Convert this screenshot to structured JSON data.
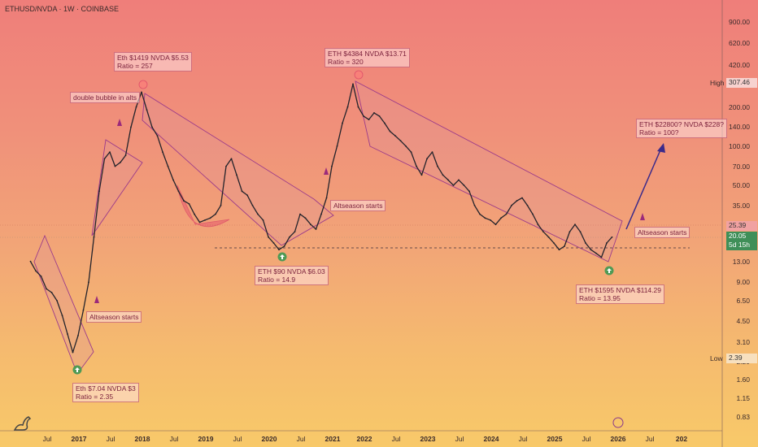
{
  "title": "ETHUSD/NVDA · 1W · COINBASE",
  "chart_data": {
    "type": "line",
    "symbol": "ETHUSD/NVDA",
    "interval": "1W",
    "exchange": "COINBASE",
    "y_scale": "log",
    "ylim": [
      0.7,
      1100
    ],
    "y_ticks": [
      "900.00",
      "620.00",
      "420.00",
      "200.00",
      "140.00",
      "100.00",
      "70.00",
      "50.00",
      "35.00",
      "13.00",
      "9.00",
      "6.50",
      "4.50",
      "3.10",
      "2.20",
      "1.60",
      "1.15",
      "0.83"
    ],
    "x_ticks": [
      {
        "label": "Jul",
        "bold": false
      },
      {
        "label": "2017",
        "bold": true
      },
      {
        "label": "Jul",
        "bold": false
      },
      {
        "label": "2018",
        "bold": true
      },
      {
        "label": "Jul",
        "bold": false
      },
      {
        "label": "2019",
        "bold": true
      },
      {
        "label": "Jul",
        "bold": false
      },
      {
        "label": "2020",
        "bold": true
      },
      {
        "label": "Jul",
        "bold": false
      },
      {
        "label": "2021",
        "bold": true
      },
      {
        "label": "2022",
        "bold": true
      },
      {
        "label": "Jul",
        "bold": false
      },
      {
        "label": "2023",
        "bold": true
      },
      {
        "label": "Jul",
        "bold": false
      },
      {
        "label": "2024",
        "bold": true
      },
      {
        "label": "Jul",
        "bold": false
      },
      {
        "label": "2025",
        "bold": true
      },
      {
        "label": "Jul",
        "bold": false
      },
      {
        "label": "2026",
        "bold": true
      },
      {
        "label": "Jul",
        "bold": false
      },
      {
        "label": "202",
        "bold": true
      }
    ],
    "price_labels": {
      "high_label": "High",
      "high_value": "307.46",
      "level_value": "25.39",
      "current_value": "20.05",
      "countdown": "5d 15h",
      "low_label": "Low",
      "low_value": "2.39"
    },
    "series": [
      {
        "values": [
          [
            "2016-04",
            13
          ],
          [
            "2016-05",
            11
          ],
          [
            "2016-06",
            10
          ],
          [
            "2016-07",
            8
          ],
          [
            "2016-08",
            7.5
          ],
          [
            "2016-09",
            6.5
          ],
          [
            "2016-10",
            5
          ],
          [
            "2016-11",
            3.6
          ],
          [
            "2016-12",
            2.6
          ],
          [
            "2017-01",
            3.5
          ],
          [
            "2017-02",
            5.5
          ],
          [
            "2017-03",
            9
          ],
          [
            "2017-04",
            20
          ],
          [
            "2017-05",
            45
          ],
          [
            "2017-06",
            80
          ],
          [
            "2017-07",
            90
          ],
          [
            "2017-08",
            70
          ],
          [
            "2017-09",
            75
          ],
          [
            "2017-10",
            85
          ],
          [
            "2017-11",
            140
          ],
          [
            "2017-12",
            200
          ],
          [
            "2018-01",
            260
          ],
          [
            "2018-02",
            190
          ],
          [
            "2018-03",
            140
          ],
          [
            "2018-04",
            120
          ],
          [
            "2018-05",
            90
          ],
          [
            "2018-06",
            70
          ],
          [
            "2018-07",
            55
          ],
          [
            "2018-08",
            45
          ],
          [
            "2018-09",
            38
          ],
          [
            "2018-10",
            36
          ],
          [
            "2018-11",
            30
          ],
          [
            "2018-12",
            26
          ],
          [
            "2019-01",
            27
          ],
          [
            "2019-02",
            28
          ],
          [
            "2019-03",
            30
          ],
          [
            "2019-04",
            35
          ],
          [
            "2019-05",
            70
          ],
          [
            "2019-06",
            80
          ],
          [
            "2019-07",
            60
          ],
          [
            "2019-08",
            45
          ],
          [
            "2019-09",
            42
          ],
          [
            "2019-10",
            35
          ],
          [
            "2019-11",
            30
          ],
          [
            "2019-12",
            27
          ],
          [
            "2020-01",
            20
          ],
          [
            "2020-02",
            18
          ],
          [
            "2020-03",
            16
          ],
          [
            "2020-04",
            17
          ],
          [
            "2020-05",
            20
          ],
          [
            "2020-06",
            22
          ],
          [
            "2020-07",
            30
          ],
          [
            "2020-08",
            28
          ],
          [
            "2020-09",
            25
          ],
          [
            "2020-10",
            23
          ],
          [
            "2020-11",
            30
          ],
          [
            "2020-12",
            40
          ],
          [
            "2021-01",
            70
          ],
          [
            "2021-02",
            100
          ],
          [
            "2021-03",
            150
          ],
          [
            "2021-04",
            200
          ],
          [
            "2021-05",
            300
          ],
          [
            "2021-06",
            200
          ],
          [
            "2021-07",
            170
          ],
          [
            "2021-08",
            160
          ],
          [
            "2021-09",
            180
          ],
          [
            "2021-10",
            170
          ],
          [
            "2021-11",
            150
          ],
          [
            "2021-12",
            130
          ],
          [
            "2022-01",
            120
          ],
          [
            "2022-02",
            110
          ],
          [
            "2022-03",
            100
          ],
          [
            "2022-04",
            90
          ],
          [
            "2022-05",
            70
          ],
          [
            "2022-06",
            60
          ],
          [
            "2022-07",
            80
          ],
          [
            "2022-08",
            90
          ],
          [
            "2022-09",
            70
          ],
          [
            "2022-10",
            60
          ],
          [
            "2022-11",
            55
          ],
          [
            "2022-12",
            50
          ],
          [
            "2023-01",
            55
          ],
          [
            "2023-02",
            50
          ],
          [
            "2023-03",
            45
          ],
          [
            "2023-04",
            35
          ],
          [
            "2023-05",
            30
          ],
          [
            "2023-06",
            28
          ],
          [
            "2023-07",
            27
          ],
          [
            "2023-08",
            25
          ],
          [
            "2023-09",
            28
          ],
          [
            "2023-10",
            30
          ],
          [
            "2023-11",
            35
          ],
          [
            "2023-12",
            38
          ],
          [
            "2024-01",
            40
          ],
          [
            "2024-02",
            35
          ],
          [
            "2024-03",
            30
          ],
          [
            "2024-04",
            25
          ],
          [
            "2024-05",
            22
          ],
          [
            "2024-06",
            20
          ],
          [
            "2024-07",
            18
          ],
          [
            "2024-08",
            16
          ],
          [
            "2024-09",
            17
          ],
          [
            "2024-10",
            22
          ],
          [
            "2024-11",
            25
          ],
          [
            "2024-12",
            22
          ],
          [
            "2025-01",
            18
          ],
          [
            "2025-02",
            16
          ],
          [
            "2025-03",
            15
          ],
          [
            "2025-04",
            14
          ],
          [
            "2025-05",
            18
          ],
          [
            "2025-06",
            20
          ]
        ]
      }
    ],
    "annotations": [
      {
        "lines": [
          "Eth $1419 NVDA $5.53",
          "Ratio = 257"
        ]
      },
      {
        "lines": [
          "double bubble in alts"
        ]
      },
      {
        "lines": [
          "ETH $4384 NVDA $13.71",
          "Ratio = 320"
        ]
      },
      {
        "lines": [
          "ETH $22800? NVDA $228?",
          "Ratio = 100?"
        ]
      },
      {
        "lines": [
          "Altseason starts"
        ]
      },
      {
        "lines": [
          "Altseason starts"
        ]
      },
      {
        "lines": [
          "Altseason starts"
        ]
      },
      {
        "lines": [
          "ETH $90 NVDA $6.03",
          "Ratio = 14.9"
        ]
      },
      {
        "lines": [
          "ETH $1595 NVDA $114.29",
          "Ratio = 13.95"
        ]
      },
      {
        "lines": [
          "Eth $7.04 NVDA $3",
          "Ratio = 2.35"
        ]
      }
    ]
  }
}
